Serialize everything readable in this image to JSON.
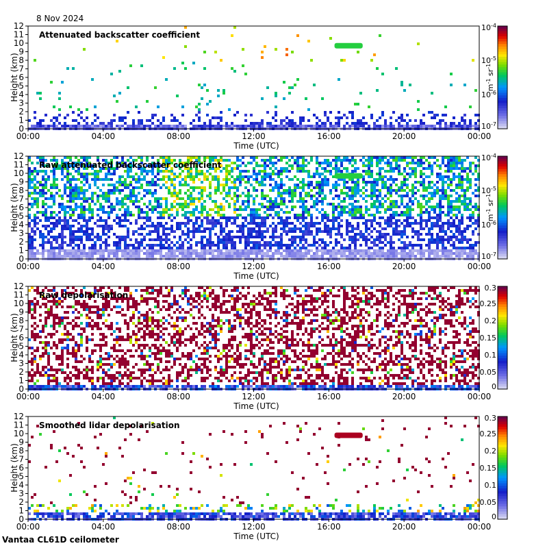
{
  "date": "8 Nov 2024",
  "footer": "Vantaa CL61D ceilometer",
  "chart_data": [
    {
      "type": "heatmap",
      "title": "Attenuated backscatter coefficient",
      "xlabel": "Time (UTC)",
      "ylabel": "Height (km)",
      "x_ticks": [
        "00:00",
        "04:00",
        "08:00",
        "12:00",
        "16:00",
        "20:00",
        "00:00"
      ],
      "y_ticks": [
        "0",
        "1",
        "2",
        "3",
        "4",
        "5",
        "6",
        "7",
        "8",
        "9",
        "10",
        "11",
        "12"
      ],
      "ylim": [
        0,
        12
      ],
      "xlim_hours": [
        0,
        24
      ],
      "colorbar": {
        "scale": "log",
        "range": [
          1e-07,
          0.0001
        ],
        "ticks": [
          {
            "base": "10",
            "exp": "-4"
          },
          {
            "base": "10",
            "exp": "-5"
          },
          {
            "base": "10",
            "exp": "-6"
          },
          {
            "base": "10",
            "exp": "-7"
          }
        ],
        "label_parts": [
          "m",
          "-1",
          " sr",
          "-1"
        ]
      },
      "features": [
        {
          "kind": "cloud_layer",
          "time_start": 16.3,
          "time_end": 17.8,
          "height_km": 9.7,
          "level": 0.55
        },
        {
          "kind": "sparse_high_signal",
          "time_start": 0,
          "time_end": 24,
          "height_km": [
            0.5,
            12
          ]
        }
      ]
    },
    {
      "type": "heatmap",
      "title": "Raw attenuated backscatter coefficient",
      "xlabel": "Time (UTC)",
      "ylabel": "Height (km)",
      "x_ticks": [
        "00:00",
        "04:00",
        "08:00",
        "12:00",
        "16:00",
        "20:00",
        "00:00"
      ],
      "y_ticks": [
        "0",
        "1",
        "2",
        "3",
        "4",
        "5",
        "6",
        "7",
        "8",
        "9",
        "10",
        "11",
        "12"
      ],
      "ylim": [
        0,
        12
      ],
      "xlim_hours": [
        0,
        24
      ],
      "colorbar": {
        "scale": "log",
        "range": [
          1e-07,
          0.0001
        ],
        "ticks": [
          {
            "base": "10",
            "exp": "-4"
          },
          {
            "base": "10",
            "exp": "-5"
          },
          {
            "base": "10",
            "exp": "-6"
          },
          {
            "base": "10",
            "exp": "-7"
          }
        ],
        "label_parts": [
          "m",
          "-1",
          " sr",
          "-1"
        ]
      },
      "features": [
        {
          "kind": "cloud_layer",
          "time_start": 16.3,
          "time_end": 17.8,
          "height_km": 9.7,
          "level": 0.55
        },
        {
          "kind": "noisy_signal",
          "time_start": 0,
          "time_end": 24,
          "height_km": [
            1.5,
            12
          ]
        }
      ]
    },
    {
      "type": "heatmap",
      "title": "Raw depolarisation",
      "xlabel": "Time (UTC)",
      "ylabel": "Height (km)",
      "x_ticks": [
        "00:00",
        "04:00",
        "08:00",
        "12:00",
        "16:00",
        "20:00",
        "00:00"
      ],
      "y_ticks": [
        "0",
        "1",
        "2",
        "3",
        "4",
        "5",
        "6",
        "7",
        "8",
        "9",
        "10",
        "11",
        "12"
      ],
      "ylim": [
        0,
        12
      ],
      "xlim_hours": [
        0,
        24
      ],
      "colorbar": {
        "scale": "linear",
        "range": [
          0,
          0.3
        ],
        "ticks": [
          "0.3",
          "0.25",
          "0.2",
          "0.15",
          "0.1",
          "0.05",
          "0"
        ]
      },
      "features": [
        {
          "kind": "noise_saturated",
          "time_start": 0,
          "time_end": 24,
          "height_km": [
            1,
            12
          ]
        }
      ]
    },
    {
      "type": "heatmap",
      "title": "Smoothed lidar depolarisation",
      "xlabel": "Time (UTC)",
      "ylabel": "Height (km)",
      "x_ticks": [
        "00:00",
        "04:00",
        "08:00",
        "12:00",
        "16:00",
        "20:00",
        "00:00"
      ],
      "y_ticks": [
        "0",
        "1",
        "2",
        "3",
        "4",
        "5",
        "6",
        "7",
        "8",
        "9",
        "10",
        "11",
        "12"
      ],
      "ylim": [
        0,
        12
      ],
      "xlim_hours": [
        0,
        24
      ],
      "colorbar": {
        "scale": "linear",
        "range": [
          0,
          0.3
        ],
        "ticks": [
          "0.3",
          "0.25",
          "0.2",
          "0.15",
          "0.1",
          "0.05",
          "0"
        ]
      },
      "features": [
        {
          "kind": "cloud_layer",
          "time_start": 16.3,
          "time_end": 17.8,
          "height_km": 9.8,
          "level": 0.95
        },
        {
          "kind": "boundary_layer",
          "time_start": 0,
          "time_end": 24,
          "height_km": [
            0,
            1.5
          ]
        }
      ]
    }
  ]
}
